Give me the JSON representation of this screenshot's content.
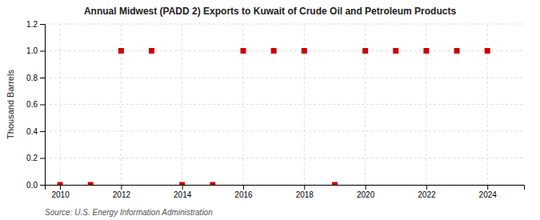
{
  "chart_data": {
    "type": "scatter",
    "title": "Annual Midwest (PADD 2) Exports to Kuwait of Crude Oil and Petroleum Products",
    "ylabel": "Thousand Barrels",
    "annotations": [
      "Source: U.S. Energy Information Administration"
    ],
    "x": [
      2010,
      2011,
      2012,
      2013,
      2014,
      2015,
      2016,
      2017,
      2018,
      2019,
      2020,
      2021,
      2022,
      2023,
      2024
    ],
    "values": [
      0,
      0,
      1,
      1,
      0,
      0,
      1,
      1,
      1,
      0,
      1,
      1,
      1,
      1,
      1
    ],
    "color": "#cc0000",
    "marker": "square",
    "xlim": [
      2009.5,
      2025.2
    ],
    "ylim": [
      0.0,
      1.2
    ],
    "xticks": [
      2010,
      2012,
      2014,
      2016,
      2018,
      2020,
      2022,
      2024
    ],
    "yticks": [
      {
        "value": 0.0,
        "label": "0.0"
      },
      0.2,
      0.4,
      0.6,
      0.8,
      {
        "value": 1.0,
        "label": "1.0"
      },
      1.2
    ],
    "grid": true
  }
}
